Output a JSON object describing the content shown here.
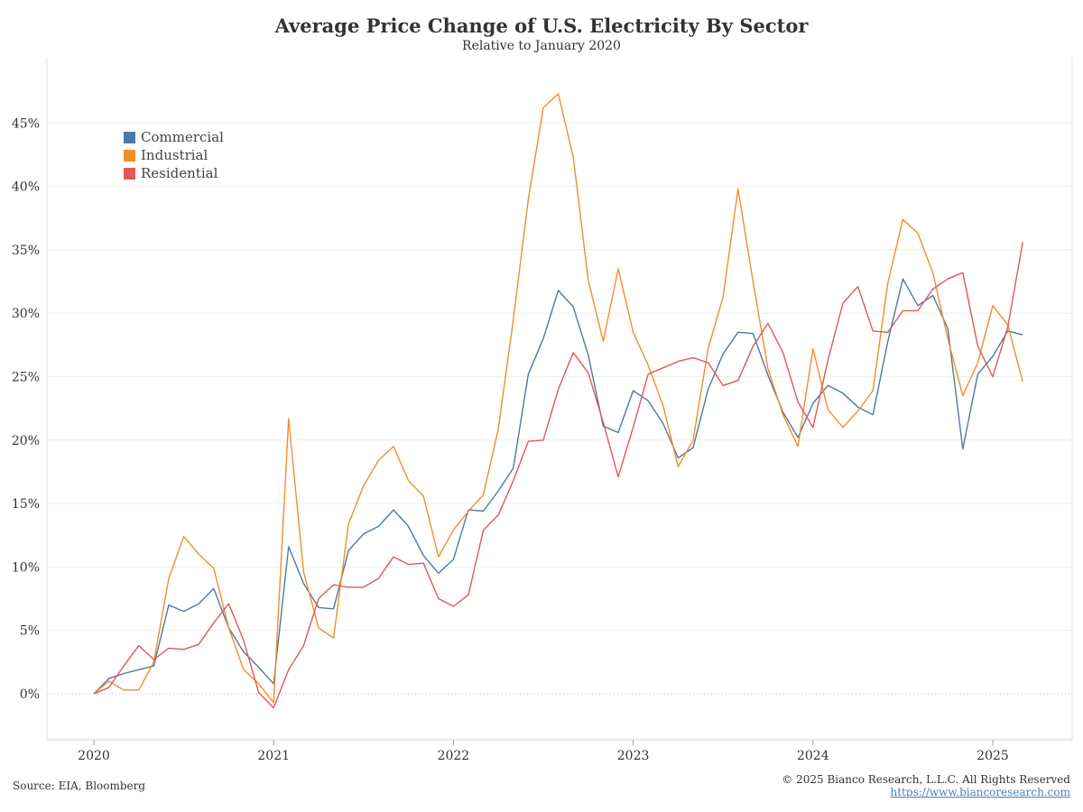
{
  "chart_data": {
    "type": "line",
    "title": "Average Price Change of U.S. Electricity By Sector",
    "subtitle": "Relative to January 2020",
    "xlabel": "",
    "ylabel": "",
    "x_tick_labels": [
      "2020",
      "2021",
      "2022",
      "2023",
      "2024",
      "2025"
    ],
    "y_tick_labels": [
      "0%",
      "5%",
      "10%",
      "15%",
      "20%",
      "25%",
      "30%",
      "35%",
      "40%",
      "45%"
    ],
    "ylim": [
      -3.5,
      50
    ],
    "grid": "horizontal",
    "legend_position": "top-left",
    "x_start": "2020-01",
    "series": [
      {
        "name": "Commercial",
        "color": "#4e79a7",
        "values": [
          0,
          1.2,
          1.6,
          1.9,
          2.2,
          7.0,
          6.5,
          7.1,
          8.3,
          5.2,
          3.3,
          2.1,
          0.8,
          11.6,
          8.7,
          6.8,
          6.7,
          11.3,
          12.6,
          13.2,
          14.5,
          13.2,
          10.9,
          9.5,
          10.6,
          14.5,
          14.4,
          16.0,
          17.8,
          25.2,
          28.0,
          31.8,
          30.5,
          26.7,
          21.1,
          20.6,
          23.9,
          23.1,
          21.3,
          18.6,
          19.4,
          24.0,
          26.8,
          28.5,
          28.4,
          25.1,
          22.2,
          20.2,
          22.9,
          24.3,
          23.7,
          22.6,
          22.0,
          27.8,
          32.7,
          30.6,
          31.4,
          28.8,
          19.3,
          25.2,
          26.6,
          28.6,
          28.3
        ]
      },
      {
        "name": "Industrial",
        "color": "#f28e2b",
        "values": [
          0,
          1.0,
          0.3,
          0.3,
          2.5,
          9.1,
          12.4,
          11.0,
          9.9,
          5.2,
          1.9,
          0.8,
          -0.7,
          21.7,
          9.6,
          5.2,
          4.4,
          13.4,
          16.4,
          18.4,
          19.5,
          16.8,
          15.6,
          10.8,
          12.9,
          14.4,
          15.7,
          20.9,
          29.5,
          39.0,
          46.2,
          47.3,
          42.3,
          32.6,
          27.8,
          33.5,
          28.5,
          25.9,
          22.7,
          17.9,
          20.0,
          27.2,
          31.3,
          39.8,
          32.5,
          25.6,
          22.0,
          19.5,
          27.2,
          22.4,
          21.0,
          22.3,
          23.9,
          32.4,
          37.4,
          36.3,
          33.2,
          28.0,
          23.5,
          26.1,
          30.6,
          29.1,
          24.6
        ]
      },
      {
        "name": "Residential",
        "color": "#e15759",
        "values": [
          0,
          0.5,
          2.2,
          3.8,
          2.7,
          3.6,
          3.5,
          3.9,
          5.6,
          7.1,
          4.2,
          0.1,
          -1.1,
          1.9,
          3.8,
          7.5,
          8.6,
          8.4,
          8.4,
          9.1,
          10.8,
          10.2,
          10.3,
          7.5,
          6.9,
          7.8,
          12.9,
          14.1,
          16.8,
          19.9,
          20.0,
          24.0,
          26.9,
          25.3,
          21.4,
          17.1,
          21.0,
          25.2,
          25.7,
          26.2,
          26.5,
          26.1,
          24.3,
          24.7,
          27.4,
          29.2,
          26.9,
          23.0,
          21.0,
          26.3,
          30.8,
          32.1,
          28.6,
          28.5,
          30.2,
          30.2,
          31.9,
          32.7,
          33.2,
          27.4,
          25.0,
          28.9,
          35.6
        ]
      }
    ]
  },
  "footer": {
    "source": "Source: EIA, Bloomberg",
    "copyright": "© 2025 Bianco Research, L.L.C. All Rights Reserved",
    "url": "https://www.biancoresearch.com"
  }
}
